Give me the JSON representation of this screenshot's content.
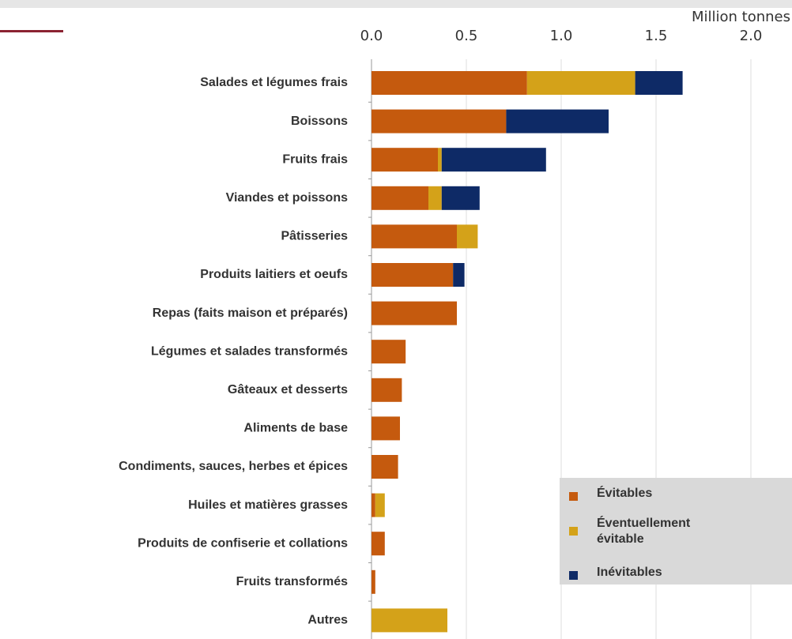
{
  "chart_data": {
    "type": "stacked-barh",
    "x_label": "Million tonnes",
    "categories": [
      "Salades et légumes frais",
      "Boissons",
      "Fruits frais",
      "Viandes et poissons",
      "Pâtisseries",
      "Produits laitiers et oeufs",
      "Repas (faits maison et préparés)",
      "Légumes et salades transformés",
      "Gâteaux et desserts",
      "Aliments de base",
      "Condiments, sauces, herbes et épices",
      "Huiles et matières grasses",
      "Produits de confiserie et collations",
      "Fruits transformés",
      "Autres"
    ],
    "series": [
      {
        "name": "Évitables",
        "color": "#c55a0e",
        "values": [
          0.82,
          0.71,
          0.35,
          0.3,
          0.45,
          0.43,
          0.45,
          0.18,
          0.16,
          0.15,
          0.14,
          0.02,
          0.07,
          0.02,
          0
        ]
      },
      {
        "name": "Éventuellement évitable",
        "color": "#d4a219",
        "values": [
          0.57,
          0,
          0.02,
          0.07,
          0.11,
          0,
          0,
          0,
          0,
          0,
          0,
          0.05,
          0,
          0,
          0.4
        ]
      },
      {
        "name": "Inévitables",
        "color": "#0e2a66",
        "values": [
          0.25,
          0.54,
          0.55,
          0.2,
          0,
          0.06,
          0,
          0,
          0,
          0,
          0,
          0,
          0,
          0,
          0
        ]
      }
    ],
    "xlim": [
      0,
      2.2
    ],
    "xticks": [
      {
        "value": 0,
        "label": "0.0"
      },
      0.5,
      {
        "value": 1,
        "label": "1.0"
      },
      1.5,
      {
        "value": 2,
        "label": "2.0"
      }
    ],
    "grid": true
  }
}
